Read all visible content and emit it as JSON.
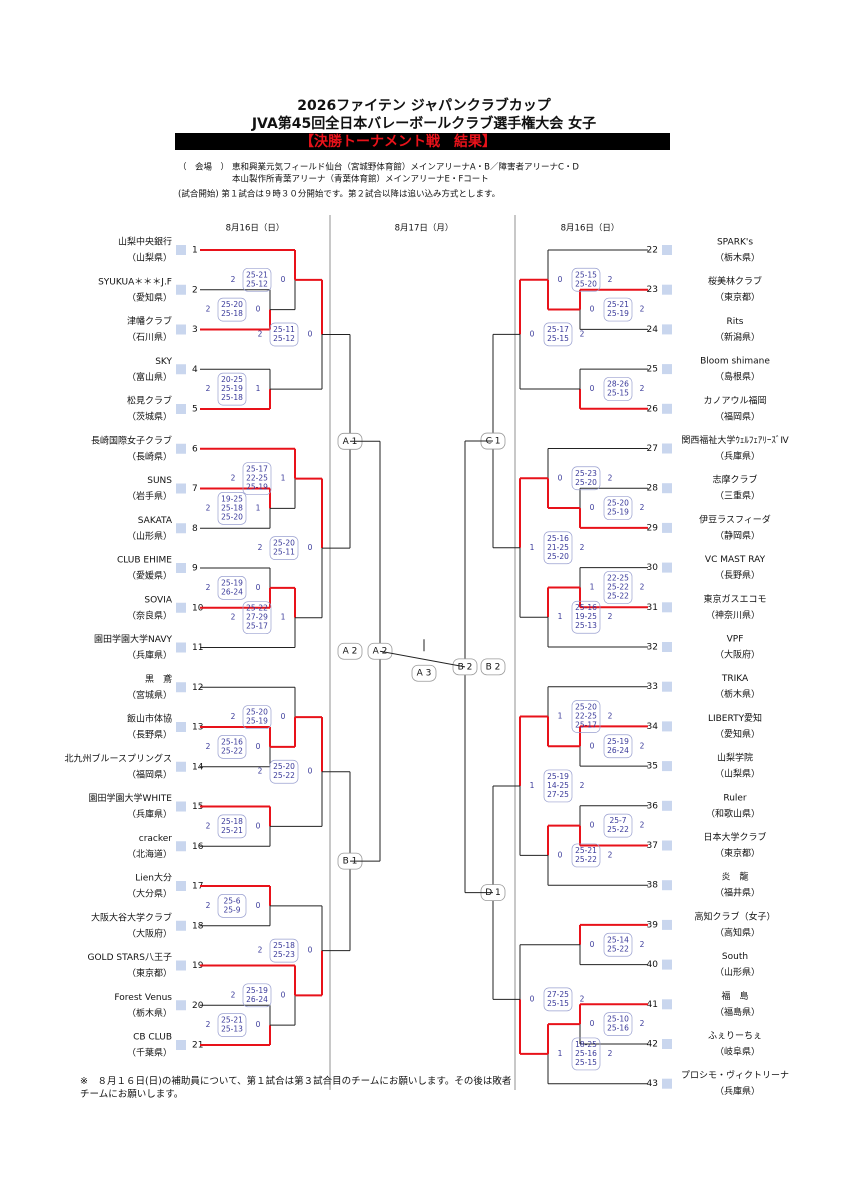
{
  "header": {
    "title": "2026ファイテン ジャパンクラブカップ",
    "subtitle": "JVA第45回全日本バレーボールクラブ選手権大会 女子",
    "banner": "【決勝トーナメント戦　結果】",
    "venue_label": "（　会場　）",
    "venues": [
      "恵和興業元気フィールド仙台（宮城野体育館）メインアリーナA・B／障害者アリーナC・D",
      "本山製作所青葉アリーナ（青葉体育館）メインアリーナE・Fコート"
    ],
    "start": "(試合開始) 第１試合は９時３０分開始です。第２試合以降は追い込み方式とします。"
  },
  "dates": [
    "8月16日（日）",
    "8月17日（月）",
    "8月16日（日）"
  ],
  "left_teams": [
    {
      "no": 1,
      "name": "山梨中央銀行",
      "pref": "（山梨県）"
    },
    {
      "no": 2,
      "name": "SYUKUA＊＊＊J.F",
      "pref": "（愛知県）"
    },
    {
      "no": 3,
      "name": "津幡クラブ",
      "pref": "（石川県）"
    },
    {
      "no": 4,
      "name": "SKY",
      "pref": "（富山県）"
    },
    {
      "no": 5,
      "name": "松見クラブ",
      "pref": "（茨城県）"
    },
    {
      "no": 6,
      "name": "長崎国際女子クラブ",
      "pref": "（長崎県）"
    },
    {
      "no": 7,
      "name": "SUNS",
      "pref": "（岩手県）"
    },
    {
      "no": 8,
      "name": "SAKATA",
      "pref": "（山形県）"
    },
    {
      "no": 9,
      "name": "CLUB EHIME",
      "pref": "（愛媛県）"
    },
    {
      "no": 10,
      "name": "SOVIA",
      "pref": "（奈良県）"
    },
    {
      "no": 11,
      "name": "園田学園大学NAVY",
      "pref": "（兵庫県）"
    },
    {
      "no": 12,
      "name": "黒　鳶",
      "pref": "（宮城県）"
    },
    {
      "no": 13,
      "name": "飯山市体協",
      "pref": "（長野県）"
    },
    {
      "no": 14,
      "name": "北九州ブルースプリングス",
      "pref": "（福岡県）"
    },
    {
      "no": 15,
      "name": "園田学園大学WHITE",
      "pref": "（兵庫県）"
    },
    {
      "no": 16,
      "name": "cracker",
      "pref": "（北海道）"
    },
    {
      "no": 17,
      "name": "Lien大分",
      "pref": "（大分県）"
    },
    {
      "no": 18,
      "name": "大阪大谷大学クラブ",
      "pref": "（大阪府）"
    },
    {
      "no": 19,
      "name": "GOLD STARS八王子",
      "pref": "（東京都）"
    },
    {
      "no": 20,
      "name": "Forest Venus",
      "pref": "（栃木県）"
    },
    {
      "no": 21,
      "name": "CB CLUB",
      "pref": "（千葉県）"
    }
  ],
  "right_teams": [
    {
      "no": 22,
      "name": "SPARK's",
      "pref": "（栃木県）"
    },
    {
      "no": 23,
      "name": "桜美林クラブ",
      "pref": "（東京都）"
    },
    {
      "no": 24,
      "name": "Rits",
      "pref": "（新潟県）"
    },
    {
      "no": 25,
      "name": "Bloom shimane",
      "pref": "（島根県）"
    },
    {
      "no": 26,
      "name": "カノアウル福岡",
      "pref": "（福岡県）"
    },
    {
      "no": 27,
      "name": "関西福祉大学ｳｪﾙﾌｪｱﾘｰｽﾞⅣ",
      "pref": "（兵庫県）"
    },
    {
      "no": 28,
      "name": "志摩クラブ",
      "pref": "（三重県）"
    },
    {
      "no": 29,
      "name": "伊豆ラスフィーダ",
      "pref": "（静岡県）"
    },
    {
      "no": 30,
      "name": "VC MAST RAY",
      "pref": "（長野県）"
    },
    {
      "no": 31,
      "name": "東京ガスエコモ",
      "pref": "（神奈川県）"
    },
    {
      "no": 32,
      "name": "VPF",
      "pref": "（大阪府）"
    },
    {
      "no": 33,
      "name": "TRIKA",
      "pref": "（栃木県）"
    },
    {
      "no": 34,
      "name": "LIBERTY愛知",
      "pref": "（愛知県）"
    },
    {
      "no": 35,
      "name": "山梨学院",
      "pref": "（山梨県）"
    },
    {
      "no": 36,
      "name": "Ruler",
      "pref": "（和歌山県）"
    },
    {
      "no": 37,
      "name": "日本大学クラブ",
      "pref": "（東京都）"
    },
    {
      "no": 38,
      "name": "炎　龍",
      "pref": "（福井県）"
    },
    {
      "no": 39,
      "name": "高知クラブ（女子）",
      "pref": "（高知県）"
    },
    {
      "no": 40,
      "name": "South",
      "pref": "（山形県）"
    },
    {
      "no": 41,
      "name": "福　島",
      "pref": "（福島県）"
    },
    {
      "no": 42,
      "name": "ふぇりーちぇ",
      "pref": "（岐阜県）"
    },
    {
      "no": 43,
      "name": "プロシモ・ヴィクトリーナ",
      "pref": "（兵庫県）"
    }
  ],
  "left_matches": [
    {
      "a": 2,
      "sets": [
        "25-20",
        "25-18"
      ],
      "b": 0
    },
    {
      "a": 2,
      "sets": [
        "25-21",
        "25-12"
      ],
      "b": 0
    },
    {
      "a": 2,
      "sets": [
        "20-25",
        "25-19",
        "25-18"
      ],
      "b": 1
    },
    {
      "a": 2,
      "sets": [
        "25-11",
        "25-12"
      ],
      "b": 0
    },
    {
      "a": 2,
      "sets": [
        "19-25",
        "25-18",
        "25-20"
      ],
      "b": 1
    },
    {
      "a": 2,
      "sets": [
        "25-17",
        "22-25",
        "25-19"
      ],
      "b": 1
    },
    {
      "a": 2,
      "sets": [
        "25-19",
        "26-24"
      ],
      "b": 0
    },
    {
      "a": 2,
      "sets": [
        "25-22",
        "27-29",
        "25-17"
      ],
      "b": 1
    },
    {
      "a": 2,
      "sets": [
        "25-20",
        "25-11"
      ],
      "b": 0
    },
    {
      "a": 2,
      "sets": [
        "25-16",
        "25-22"
      ],
      "b": 0
    },
    {
      "a": 2,
      "sets": [
        "25-20",
        "25-19"
      ],
      "b": 0
    },
    {
      "a": 2,
      "sets": [
        "25-18",
        "25-21"
      ],
      "b": 0
    },
    {
      "a": 2,
      "sets": [
        "25-20",
        "25-22"
      ],
      "b": 0
    },
    {
      "a": 2,
      "sets": [
        "25-6",
        "25-9"
      ],
      "b": 0
    },
    {
      "a": 2,
      "sets": [
        "25-21",
        "25-13"
      ],
      "b": 0
    },
    {
      "a": 2,
      "sets": [
        "25-19",
        "26-24"
      ],
      "b": 0
    },
    {
      "a": 2,
      "sets": [
        "25-18",
        "25-23"
      ],
      "b": 0
    }
  ],
  "right_matches": [
    {
      "a": 2,
      "sets": [
        "25-21",
        "25-19"
      ],
      "b": 0
    },
    {
      "a": 2,
      "sets": [
        "25-15",
        "25-20"
      ],
      "b": 0
    },
    {
      "a": 2,
      "sets": [
        "28-26",
        "25-15"
      ],
      "b": 0
    },
    {
      "a": 2,
      "sets": [
        "25-17",
        "25-15"
      ],
      "b": 0
    },
    {
      "a": 2,
      "sets": [
        "25-20",
        "25-19"
      ],
      "b": 0
    },
    {
      "a": 2,
      "sets": [
        "25-23",
        "25-20"
      ],
      "b": 0
    },
    {
      "a": 2,
      "sets": [
        "22-25",
        "25-22",
        "25-22"
      ],
      "b": 1
    },
    {
      "a": 2,
      "sets": [
        "25-16",
        "19-25",
        "25-13"
      ],
      "b": 1
    },
    {
      "a": 2,
      "sets": [
        "25-16",
        "21-25",
        "25-20"
      ],
      "b": 1
    },
    {
      "a": 2,
      "sets": [
        "25-19",
        "26-24"
      ],
      "b": 0
    },
    {
      "a": 2,
      "sets": [
        "25-20",
        "22-25",
        "25-17"
      ],
      "b": 1
    },
    {
      "a": 2,
      "sets": [
        "25-7",
        "25-22"
      ],
      "b": 0
    },
    {
      "a": 2,
      "sets": [
        "25-21",
        "25-22"
      ],
      "b": 0
    },
    {
      "a": 2,
      "sets": [
        "25-19",
        "14-25",
        "27-25"
      ],
      "b": 1
    },
    {
      "a": 2,
      "sets": [
        "25-14",
        "25-22"
      ],
      "b": 0
    },
    {
      "a": 2,
      "sets": [
        "25-10",
        "25-16"
      ],
      "b": 0
    },
    {
      "a": 2,
      "sets": [
        "18-25",
        "25-16",
        "25-15"
      ],
      "b": 1
    },
    {
      "a": 2,
      "sets": [
        "27-25",
        "25-15"
      ],
      "b": 0
    }
  ],
  "slots": {
    "A1": "A 1",
    "B1": "B 1",
    "A2": "A 2",
    "C1": "C 1",
    "D1": "D 1",
    "B2": "B 2",
    "A3": "A 3"
  },
  "footnote": "※　８月１６日(日)の補助員について、第１試合は第３試合目のチームにお願いします。その後は敗者チームにお願いします。"
}
